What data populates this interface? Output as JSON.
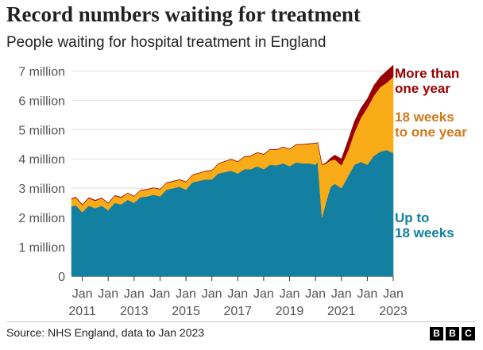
{
  "chart_data": {
    "type": "area",
    "stacked": true,
    "title": "Record numbers waiting for treatment",
    "subtitle": "People waiting for hospital treatment in England",
    "ylabel": "",
    "xlabel": "",
    "ylim": [
      0,
      7200000
    ],
    "xlim": [
      "2010-08",
      "2023-01"
    ],
    "grid": true,
    "y_ticks": [
      0,
      1000000,
      2000000,
      3000000,
      4000000,
      5000000,
      6000000,
      7000000
    ],
    "y_tick_labels": [
      "0",
      "1 million",
      "2 million",
      "3 million",
      "4 million",
      "5 million",
      "6 million",
      "7 million"
    ],
    "x_ticks": [
      "2011-01",
      "2012-01",
      "2013-01",
      "2014-01",
      "2015-01",
      "2016-01",
      "2017-01",
      "2018-01",
      "2019-01",
      "2020-01",
      "2021-01",
      "2022-01",
      "2023-01"
    ],
    "x_tick_labels": [
      [
        "Jan",
        "2011"
      ],
      [
        "Jan",
        ""
      ],
      [
        "Jan",
        "2013"
      ],
      [
        "Jan",
        ""
      ],
      [
        "Jan",
        "2015"
      ],
      [
        "Jan",
        ""
      ],
      [
        "Jan",
        "2017"
      ],
      [
        "Jan",
        ""
      ],
      [
        "Jan",
        "2019"
      ],
      [
        "Jan",
        ""
      ],
      [
        "Jan",
        "2021"
      ],
      [
        "Jan",
        ""
      ],
      [
        "Jan",
        "2023"
      ]
    ],
    "x": [
      "2010-08",
      "2010-10",
      "2011-01",
      "2011-04",
      "2011-07",
      "2011-10",
      "2012-01",
      "2012-04",
      "2012-07",
      "2012-10",
      "2013-01",
      "2013-04",
      "2013-07",
      "2013-10",
      "2014-01",
      "2014-04",
      "2014-07",
      "2014-10",
      "2015-01",
      "2015-04",
      "2015-07",
      "2015-10",
      "2016-01",
      "2016-04",
      "2016-07",
      "2016-10",
      "2017-01",
      "2017-04",
      "2017-07",
      "2017-10",
      "2018-01",
      "2018-04",
      "2018-07",
      "2018-10",
      "2019-01",
      "2019-04",
      "2019-07",
      "2019-10",
      "2020-01",
      "2020-02",
      "2020-04",
      "2020-06",
      "2020-08",
      "2020-10",
      "2021-01",
      "2021-04",
      "2021-07",
      "2021-10",
      "2022-01",
      "2022-04",
      "2022-07",
      "2022-10",
      "2023-01"
    ],
    "series": [
      {
        "name": "Up to 18 weeks",
        "color": "#1380A1",
        "values": [
          2380000,
          2420000,
          2180000,
          2400000,
          2320000,
          2400000,
          2250000,
          2500000,
          2450000,
          2600000,
          2500000,
          2700000,
          2720000,
          2780000,
          2720000,
          2950000,
          3000000,
          3050000,
          2950000,
          3200000,
          3250000,
          3300000,
          3300000,
          3500000,
          3550000,
          3600000,
          3500000,
          3650000,
          3650000,
          3750000,
          3650000,
          3800000,
          3780000,
          3850000,
          3750000,
          3880000,
          3850000,
          3850000,
          3800000,
          3900000,
          2000000,
          2550000,
          3050000,
          3150000,
          3000000,
          3400000,
          3800000,
          3900000,
          3800000,
          4100000,
          4250000,
          4300000,
          4200000
        ]
      },
      {
        "name": "18 weeks to one year",
        "color": "#FAAB18",
        "values": [
          250000,
          260000,
          250000,
          260000,
          250000,
          260000,
          230000,
          240000,
          230000,
          230000,
          220000,
          230000,
          230000,
          230000,
          240000,
          230000,
          230000,
          240000,
          260000,
          250000,
          260000,
          280000,
          300000,
          330000,
          360000,
          380000,
          400000,
          420000,
          440000,
          460000,
          500000,
          520000,
          530000,
          550000,
          580000,
          600000,
          640000,
          660000,
          730000,
          650000,
          1800000,
          1300000,
          900000,
          830000,
          780000,
          860000,
          1100000,
          1500000,
          1950000,
          2050000,
          2200000,
          2300000,
          2600000
        ]
      },
      {
        "name": "More than one year",
        "color": "#990000",
        "values": [
          20000,
          20000,
          20000,
          20000,
          20000,
          15000,
          15000,
          15000,
          15000,
          10000,
          10000,
          10000,
          10000,
          10000,
          10000,
          10000,
          10000,
          10000,
          10000,
          10000,
          10000,
          10000,
          10000,
          10000,
          10000,
          10000,
          10000,
          10000,
          10000,
          10000,
          10000,
          10000,
          10000,
          10000,
          10000,
          10000,
          10000,
          10000,
          10000,
          10000,
          10000,
          30000,
          80000,
          150000,
          220000,
          350000,
          370000,
          330000,
          300000,
          350000,
          350000,
          400000,
          400000
        ]
      }
    ],
    "series_labels": [
      [
        "More than",
        "one year"
      ],
      [
        "18 weeks",
        "to one year"
      ],
      [
        "Up to",
        "18 weeks"
      ]
    ]
  },
  "footer": {
    "source": "Source: NHS England, data to Jan 2023",
    "logo_letters": [
      "B",
      "B",
      "C"
    ]
  }
}
